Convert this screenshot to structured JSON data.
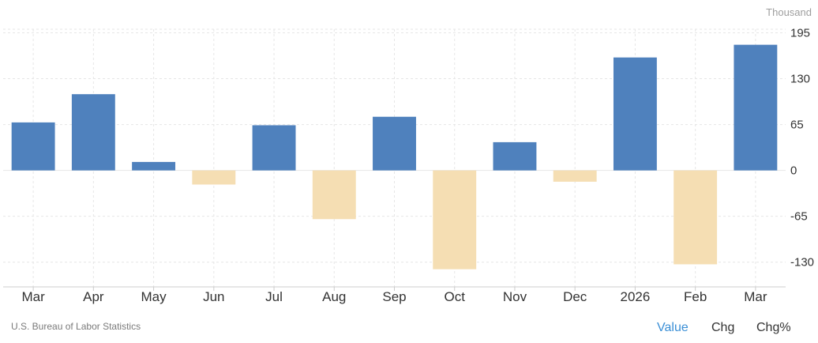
{
  "unit_label": "Thousand",
  "source": "U.S. Bureau of Labor Statistics",
  "toggles": {
    "value": "Value",
    "chg": "Chg",
    "chg_pct": "Chg%"
  },
  "colors": {
    "positive": "#4f81bd",
    "negative": "#f5deb3",
    "active_toggle": "#3a8fd6",
    "grid": "#e6e6e6"
  },
  "chart_data": {
    "type": "bar",
    "categories": [
      "Mar",
      "Apr",
      "May",
      "Jun",
      "Jul",
      "Aug",
      "Sep",
      "Oct",
      "Nov",
      "Dec",
      "2026",
      "Feb",
      "Mar"
    ],
    "values": [
      68,
      108,
      12,
      -20,
      64,
      -69,
      76,
      -140,
      40,
      -16,
      160,
      -133,
      178
    ],
    "yticks": [
      195,
      130,
      65,
      0,
      -65,
      -130
    ],
    "ylim": [
      -165,
      200
    ],
    "grid": true,
    "y_axis_position": "right"
  }
}
